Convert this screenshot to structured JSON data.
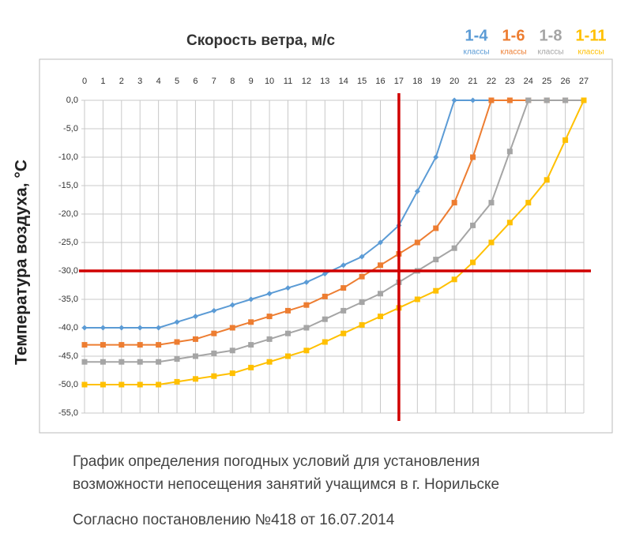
{
  "chart_data": {
    "type": "line",
    "title": "Скорость ветра, м/с",
    "y_label": "Температура воздуха, °C",
    "legend_sublabel": "классы",
    "x": [
      0,
      1,
      2,
      3,
      4,
      5,
      6,
      7,
      8,
      9,
      10,
      11,
      12,
      13,
      14,
      15,
      16,
      17,
      18,
      19,
      20,
      21,
      22,
      23,
      24,
      25,
      26,
      27
    ],
    "xlim": [
      0,
      27
    ],
    "xticks": [
      0,
      1,
      2,
      3,
      4,
      5,
      6,
      7,
      8,
      9,
      10,
      11,
      12,
      13,
      14,
      15,
      16,
      17,
      18,
      19,
      20,
      21,
      22,
      23,
      24,
      25,
      26,
      27
    ],
    "ylim": [
      -55,
      0
    ],
    "yticks": [
      {
        "value": 0,
        "label": "0,0"
      },
      {
        "value": -5,
        "label": "-5,0"
      },
      {
        "value": -10,
        "label": "-10,0"
      },
      {
        "value": -15,
        "label": "-15,0"
      },
      {
        "value": -20,
        "label": "-20,0"
      },
      {
        "value": -25,
        "label": "-25,0"
      },
      {
        "value": -30,
        "label": "-30,0"
      },
      {
        "value": -35,
        "label": "-35,0"
      },
      {
        "value": -40,
        "label": "-40,0"
      },
      {
        "value": -45,
        "label": "-45,0"
      },
      {
        "value": -50,
        "label": "-50,0"
      },
      {
        "value": -55,
        "label": "-55,0"
      }
    ],
    "grid": true,
    "reference_lines": {
      "x": 17,
      "y": -30,
      "color": "#d00000"
    },
    "series": [
      {
        "name": "1-4",
        "color": "#5b9bd5",
        "marker": "diamond",
        "values": [
          -40,
          -40,
          -40,
          -40,
          -40,
          -39,
          -38,
          -37,
          -36,
          -35,
          -34,
          -33,
          -32,
          -30.5,
          -29,
          -27.5,
          -25,
          -22,
          -16,
          -10,
          0,
          0,
          0,
          0,
          0,
          0,
          0,
          0
        ]
      },
      {
        "name": "1-6",
        "color": "#ed7d31",
        "marker": "square",
        "values": [
          -43,
          -43,
          -43,
          -43,
          -43,
          -42.5,
          -42,
          -41,
          -40,
          -39,
          -38,
          -37,
          -36,
          -34.5,
          -33,
          -31,
          -29,
          -27,
          -25,
          -22.5,
          -18,
          -10,
          0,
          0,
          0,
          0,
          0,
          0
        ]
      },
      {
        "name": "1-8",
        "color": "#a5a5a5",
        "marker": "square",
        "values": [
          -46,
          -46,
          -46,
          -46,
          -46,
          -45.5,
          -45,
          -44.5,
          -44,
          -43,
          -42,
          -41,
          -40,
          -38.5,
          -37,
          -35.5,
          -34,
          -32,
          -30,
          -28,
          -26,
          -22,
          -18,
          -9,
          0,
          0,
          0,
          0
        ]
      },
      {
        "name": "1-11",
        "color": "#ffc000",
        "marker": "square",
        "values": [
          -50,
          -50,
          -50,
          -50,
          -50,
          -49.5,
          -49,
          -48.5,
          -48,
          -47,
          -46,
          -45,
          -44,
          -42.5,
          -41,
          -39.5,
          -38,
          -36.5,
          -35,
          -33.5,
          -31.5,
          -28.5,
          -25,
          -21.5,
          -18,
          -14,
          -7,
          0
        ]
      }
    ]
  },
  "caption": {
    "line1": "График определения погодных условий для установления",
    "line2": "возможности непосещения занятий учащимся в г. Норильске",
    "line3": "Согласно постановлению №418 от 16.07.2014"
  }
}
